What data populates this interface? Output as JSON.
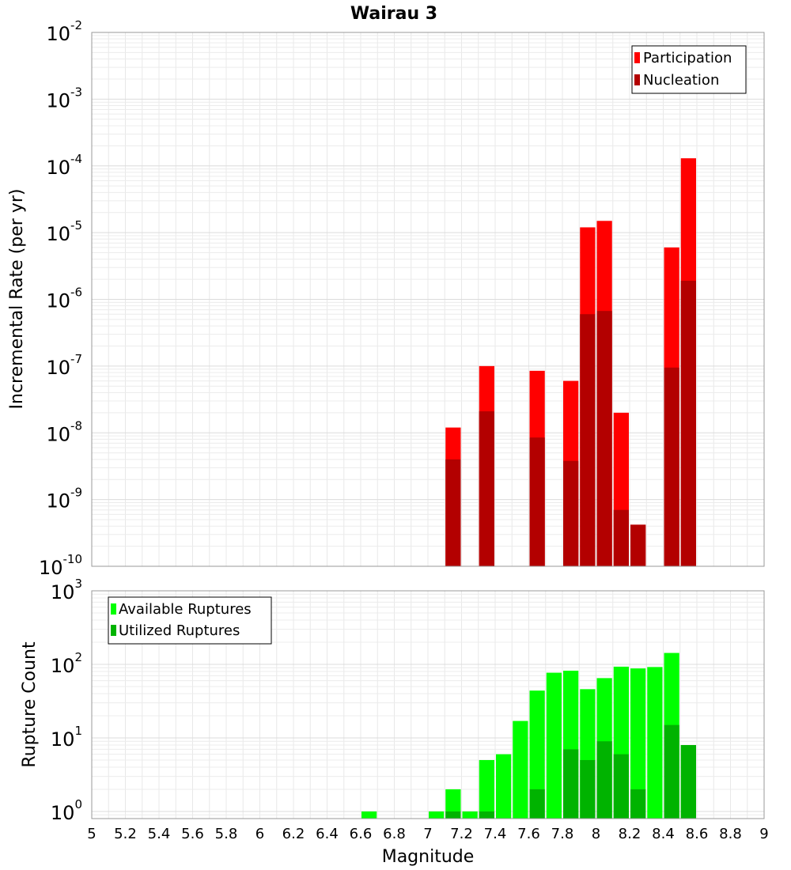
{
  "chart_data": [
    {
      "type": "bar",
      "title": "Wairau 3",
      "xlabel": "Magnitude",
      "ylabel": "Incremental Rate (per yr)",
      "yscale": "log",
      "xlim": [
        5,
        9
      ],
      "ylim": [
        1e-10,
        0.01
      ],
      "y_ticks": [
        {
          "base": "10",
          "exp": "-10",
          "value": 1e-10
        },
        {
          "base": "10",
          "exp": "-9",
          "value": 1e-09
        },
        {
          "base": "10",
          "exp": "-8",
          "value": 1e-08
        },
        {
          "base": "10",
          "exp": "-7",
          "value": 1e-07
        },
        {
          "base": "10",
          "exp": "-6",
          "value": 1e-06
        },
        {
          "base": "10",
          "exp": "-5",
          "value": 1e-05
        },
        {
          "base": "10",
          "exp": "-4",
          "value": 0.0001
        },
        {
          "base": "10",
          "exp": "-3",
          "value": 0.001
        },
        {
          "base": "10",
          "exp": "-2",
          "value": 0.01
        }
      ],
      "bar_width": 0.1,
      "grid": true,
      "legend_position": "top-right",
      "series": [
        {
          "name": "Participation",
          "color": "#ff0000",
          "x": [
            7.15,
            7.35,
            7.65,
            7.85,
            7.95,
            8.05,
            8.15,
            8.25,
            8.45,
            8.55
          ],
          "values": [
            1.2e-08,
            1e-07,
            8.5e-08,
            6e-08,
            1.2e-05,
            1.5e-05,
            2e-08,
            4.2e-10,
            6e-06,
            0.00013
          ]
        },
        {
          "name": "Nucleation",
          "color": "#b30000",
          "x": [
            7.15,
            7.35,
            7.65,
            7.85,
            7.95,
            8.05,
            8.15,
            8.25,
            8.45,
            8.55
          ],
          "values": [
            4e-09,
            2.1e-08,
            8.5e-09,
            3.8e-09,
            6e-07,
            6.7e-07,
            7e-10,
            4.2e-10,
            9.5e-08,
            1.9e-06
          ]
        }
      ]
    },
    {
      "type": "bar",
      "xlabel": "Magnitude",
      "ylabel": "Rupture Count",
      "yscale": "log",
      "xlim": [
        5,
        9
      ],
      "ylim": [
        0.8,
        1000
      ],
      "x_ticks": [
        "5",
        "5.2",
        "5.4",
        "5.6",
        "5.8",
        "6",
        "6.2",
        "6.4",
        "6.6",
        "6.8",
        "7",
        "7.2",
        "7.4",
        "7.6",
        "7.8",
        "8",
        "8.2",
        "8.4",
        "8.6",
        "8.8",
        "9"
      ],
      "y_ticks": [
        {
          "base": "10",
          "exp": "0",
          "value": 1
        },
        {
          "base": "10",
          "exp": "1",
          "value": 10
        },
        {
          "base": "10",
          "exp": "2",
          "value": 100
        },
        {
          "base": "10",
          "exp": "3",
          "value": 1000
        }
      ],
      "bar_width": 0.1,
      "grid": true,
      "legend_position": "top-left",
      "series": [
        {
          "name": "Available Ruptures",
          "color": "#00ff00",
          "x": [
            6.65,
            7.05,
            7.15,
            7.25,
            7.35,
            7.45,
            7.55,
            7.65,
            7.75,
            7.85,
            7.95,
            8.05,
            8.15,
            8.25,
            8.35,
            8.45,
            8.55
          ],
          "values": [
            1,
            1,
            2,
            1,
            5,
            6,
            17,
            44,
            77,
            82,
            46,
            65,
            93,
            88,
            92,
            143,
            8
          ]
        },
        {
          "name": "Utilized Ruptures",
          "color": "#00b300",
          "x": [
            7.15,
            7.35,
            7.65,
            7.85,
            7.95,
            8.05,
            8.15,
            8.25,
            8.45,
            8.55
          ],
          "values": [
            1,
            1,
            2,
            7,
            5,
            9,
            6,
            2,
            15,
            8
          ]
        }
      ]
    }
  ]
}
